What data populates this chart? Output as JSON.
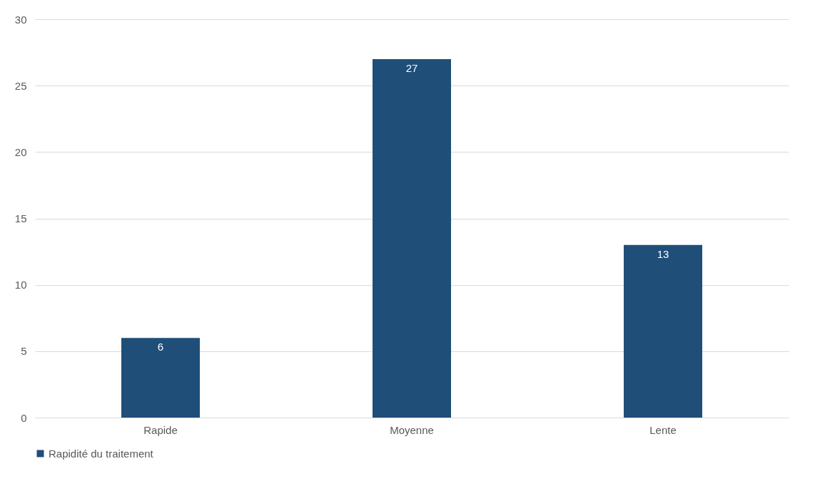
{
  "chart_data": {
    "type": "bar",
    "categories": [
      "Rapide",
      "Moyenne",
      "Lente"
    ],
    "series": [
      {
        "name": "Rapidité du traitement",
        "color": "#1f4e79",
        "values": [
          6,
          27,
          13
        ]
      }
    ],
    "ylim": [
      0,
      30
    ],
    "yticks": [
      0,
      5,
      10,
      15,
      20,
      25,
      30
    ],
    "grid": "y",
    "legend": "bottom",
    "data_labels": true
  }
}
